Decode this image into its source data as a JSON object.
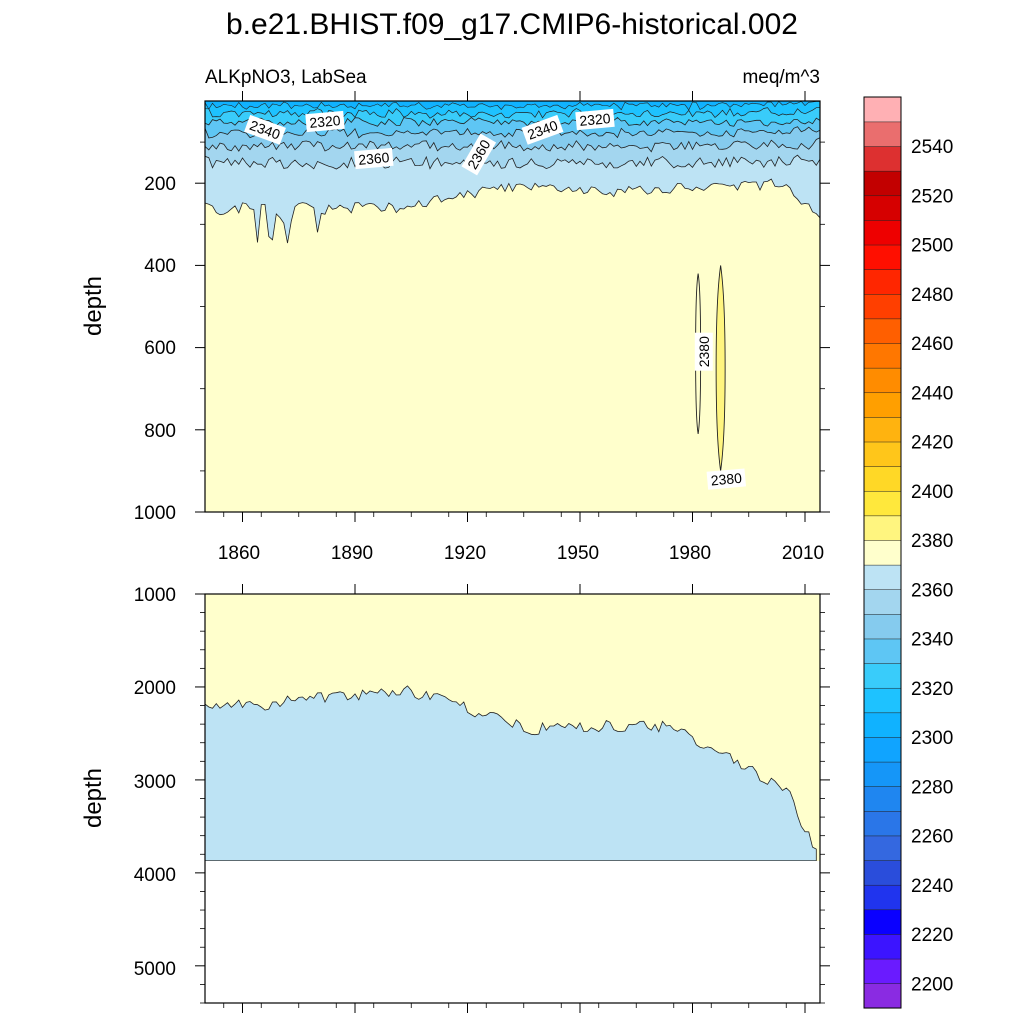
{
  "chart_data": {
    "type": "contour",
    "title": "b.e21.BHIST.f09_g17.CMIP6-historical.002",
    "variable": "ALKpNO3, LabSea",
    "units": "meq/m^3",
    "ylabel": "depth",
    "xlabel": "",
    "xlim": [
      1850,
      2014
    ],
    "x_ticks": [
      "1860",
      "1890",
      "1920",
      "1950",
      "1980",
      "2010"
    ],
    "panels": [
      {
        "name": "upper",
        "ylim": [
          0,
          1000
        ],
        "y_ticks": [
          "200",
          "400",
          "600",
          "800",
          "1000"
        ],
        "contour_labels": [
          {
            "text": "2340",
            "x": 1866,
            "y": 70
          },
          {
            "text": "2320",
            "x": 1882,
            "y": 50
          },
          {
            "text": "2360",
            "x": 1895,
            "y": 140
          },
          {
            "text": "2360",
            "x": 1923,
            "y": 130
          },
          {
            "text": "2340",
            "x": 1940,
            "y": 70
          },
          {
            "text": "2320",
            "x": 1954,
            "y": 45
          },
          {
            "text": "2380",
            "x": 1983,
            "y": 610
          },
          {
            "text": "2380",
            "x": 1989,
            "y": 920
          }
        ]
      },
      {
        "name": "lower",
        "ylim": [
          1000,
          5400
        ],
        "y_ticks": [
          "1000",
          "2000",
          "3000",
          "4000",
          "5000"
        ],
        "ocean_bottom": 3870
      }
    ],
    "colorbar": {
      "levels": [
        2200,
        2210,
        2220,
        2230,
        2240,
        2250,
        2260,
        2270,
        2280,
        2290,
        2300,
        2310,
        2320,
        2330,
        2340,
        2350,
        2360,
        2370,
        2380,
        2390,
        2400,
        2410,
        2420,
        2430,
        2440,
        2450,
        2460,
        2470,
        2480,
        2490,
        2500,
        2510,
        2520,
        2530,
        2540,
        2550
      ],
      "labels": [
        "2200",
        "2220",
        "2240",
        "2260",
        "2280",
        "2300",
        "2320",
        "2340",
        "2360",
        "2380",
        "2400",
        "2420",
        "2440",
        "2460",
        "2480",
        "2500",
        "2520",
        "2540"
      ],
      "colors": [
        "#8a2be2",
        "#6a1bff",
        "#3c14ff",
        "#0a00ff",
        "#2034ee",
        "#2a4ddb",
        "#3468e0",
        "#2a76e8",
        "#1f86f0",
        "#1596f8",
        "#10a4ff",
        "#10b2ff",
        "#1ec2ff",
        "#39ccfa",
        "#5ec6f4",
        "#85cbee",
        "#a3d6ef",
        "#bde3f4",
        "#ffffcc",
        "#fff57f",
        "#ffe83c",
        "#ffd826",
        "#ffc61a",
        "#ffb30f",
        "#ff9f00",
        "#ff8c00",
        "#ff7700",
        "#ff5f00",
        "#ff3f00",
        "#ff2600",
        "#ff0f00",
        "#ee0000",
        "#d60000",
        "#c20000",
        "#dd3030",
        "#ea6e6e",
        "#ffb0b4"
      ]
    }
  }
}
